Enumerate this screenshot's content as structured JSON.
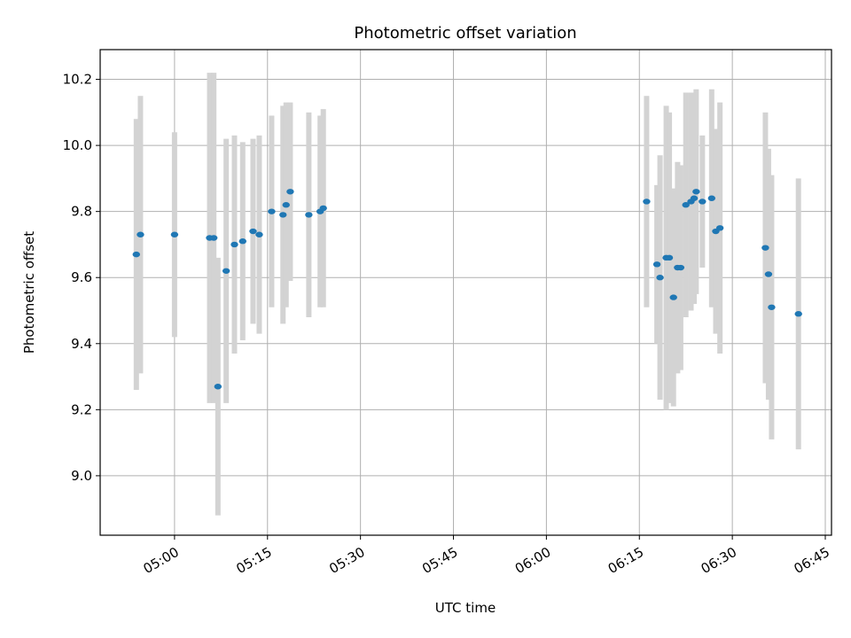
{
  "chart_data": {
    "type": "scatter",
    "title": "Photometric offset variation",
    "xlabel": "UTC time",
    "ylabel": "Photometric offset",
    "grid": true,
    "x_unit": "UTC time HH:MM",
    "xlim": [
      "04:48",
      "06:46"
    ],
    "ylim": [
      8.82,
      10.29
    ],
    "x_ticks": [
      "05:00",
      "05:15",
      "05:30",
      "05:45",
      "06:00",
      "06:15",
      "06:30",
      "06:45"
    ],
    "y_ticks": [
      9.0,
      9.2,
      9.4,
      9.6,
      9.8,
      10.0,
      10.2
    ],
    "y_tick_labels": [
      "9.0",
      "9.2",
      "9.4",
      "9.6",
      "9.8",
      "10.0",
      "10.2"
    ],
    "colors": {
      "points": "#1f77b4",
      "errorbars": "#d3d3d3",
      "grid": "#b0b0b0"
    },
    "points": [
      {
        "x": "04:53:50",
        "y": 9.67,
        "err": 0.41
      },
      {
        "x": "04:54:30",
        "y": 9.73,
        "err": 0.42
      },
      {
        "x": "05:00:00",
        "y": 9.73,
        "err": 0.31
      },
      {
        "x": "05:05:40",
        "y": 9.72,
        "err": 0.5
      },
      {
        "x": "05:06:20",
        "y": 9.72,
        "err": 0.5
      },
      {
        "x": "05:07:00",
        "y": 9.27,
        "err": 0.39
      },
      {
        "x": "05:08:20",
        "y": 9.62,
        "err": 0.4
      },
      {
        "x": "05:09:40",
        "y": 9.7,
        "err": 0.33
      },
      {
        "x": "05:11:00",
        "y": 9.71,
        "err": 0.3
      },
      {
        "x": "05:12:40",
        "y": 9.74,
        "err": 0.28
      },
      {
        "x": "05:13:40",
        "y": 9.73,
        "err": 0.3
      },
      {
        "x": "05:15:40",
        "y": 9.8,
        "err": 0.29
      },
      {
        "x": "05:17:30",
        "y": 9.79,
        "err": 0.33
      },
      {
        "x": "05:18:00",
        "y": 9.82,
        "err": 0.31
      },
      {
        "x": "05:18:40",
        "y": 9.86,
        "err": 0.27
      },
      {
        "x": "05:21:40",
        "y": 9.79,
        "err": 0.31
      },
      {
        "x": "05:23:30",
        "y": 9.8,
        "err": 0.29
      },
      {
        "x": "05:24:00",
        "y": 9.81,
        "err": 0.3
      },
      {
        "x": "06:16:10",
        "y": 9.83,
        "err": 0.32
      },
      {
        "x": "06:17:50",
        "y": 9.64,
        "err": 0.24
      },
      {
        "x": "06:18:20",
        "y": 9.6,
        "err": 0.37
      },
      {
        "x": "06:19:20",
        "y": 9.66,
        "err": 0.46
      },
      {
        "x": "06:19:50",
        "y": 9.66,
        "err": 0.44
      },
      {
        "x": "06:20:30",
        "y": 9.54,
        "err": 0.33
      },
      {
        "x": "06:21:10",
        "y": 9.63,
        "err": 0.32
      },
      {
        "x": "06:21:40",
        "y": 9.63,
        "err": 0.31
      },
      {
        "x": "06:22:30",
        "y": 9.82,
        "err": 0.34
      },
      {
        "x": "06:23:20",
        "y": 9.83,
        "err": 0.33
      },
      {
        "x": "06:23:50",
        "y": 9.84,
        "err": 0.32
      },
      {
        "x": "06:24:10",
        "y": 9.86,
        "err": 0.31
      },
      {
        "x": "06:25:10",
        "y": 9.83,
        "err": 0.2
      },
      {
        "x": "06:26:40",
        "y": 9.84,
        "err": 0.33
      },
      {
        "x": "06:27:20",
        "y": 9.74,
        "err": 0.31
      },
      {
        "x": "06:28:00",
        "y": 9.75,
        "err": 0.38
      },
      {
        "x": "06:35:20",
        "y": 9.69,
        "err": 0.41
      },
      {
        "x": "06:35:50",
        "y": 9.61,
        "err": 0.38
      },
      {
        "x": "06:36:20",
        "y": 9.51,
        "err": 0.4
      },
      {
        "x": "06:40:40",
        "y": 9.49,
        "err": 0.41
      }
    ]
  }
}
